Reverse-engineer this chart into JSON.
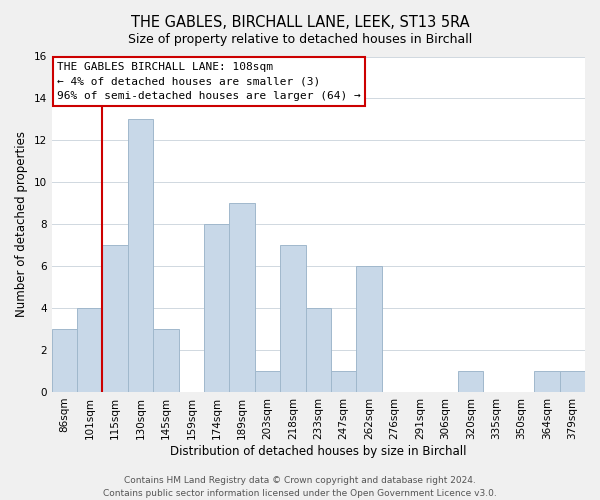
{
  "title": "THE GABLES, BIRCHALL LANE, LEEK, ST13 5RA",
  "subtitle": "Size of property relative to detached houses in Birchall",
  "xlabel": "Distribution of detached houses by size in Birchall",
  "ylabel": "Number of detached properties",
  "bar_labels": [
    "86sqm",
    "101sqm",
    "115sqm",
    "130sqm",
    "145sqm",
    "159sqm",
    "174sqm",
    "189sqm",
    "203sqm",
    "218sqm",
    "233sqm",
    "247sqm",
    "262sqm",
    "276sqm",
    "291sqm",
    "306sqm",
    "320sqm",
    "335sqm",
    "350sqm",
    "364sqm",
    "379sqm"
  ],
  "bar_values": [
    3,
    4,
    7,
    13,
    3,
    0,
    8,
    9,
    1,
    7,
    4,
    1,
    6,
    0,
    0,
    0,
    1,
    0,
    0,
    1,
    1
  ],
  "bar_color": "#c8d8e8",
  "bar_edge_color": "#a0b8cc",
  "ylim": [
    0,
    16
  ],
  "yticks": [
    0,
    2,
    4,
    6,
    8,
    10,
    12,
    14,
    16
  ],
  "annotation_title": "THE GABLES BIRCHALL LANE: 108sqm",
  "annotation_line1": "← 4% of detached houses are smaller (3)",
  "annotation_line2": "96% of semi-detached houses are larger (64) →",
  "ref_line_bar_index": 2,
  "footer_line1": "Contains HM Land Registry data © Crown copyright and database right 2024.",
  "footer_line2": "Contains public sector information licensed under the Open Government Licence v3.0.",
  "background_color": "#f0f0f0",
  "plot_bg_color": "#ffffff",
  "grid_color": "#d0d8e0",
  "ref_line_color": "#cc0000",
  "title_fontsize": 10.5,
  "subtitle_fontsize": 9,
  "axis_label_fontsize": 8.5,
  "tick_fontsize": 7.5,
  "ann_fontsize": 8,
  "footer_fontsize": 6.5
}
